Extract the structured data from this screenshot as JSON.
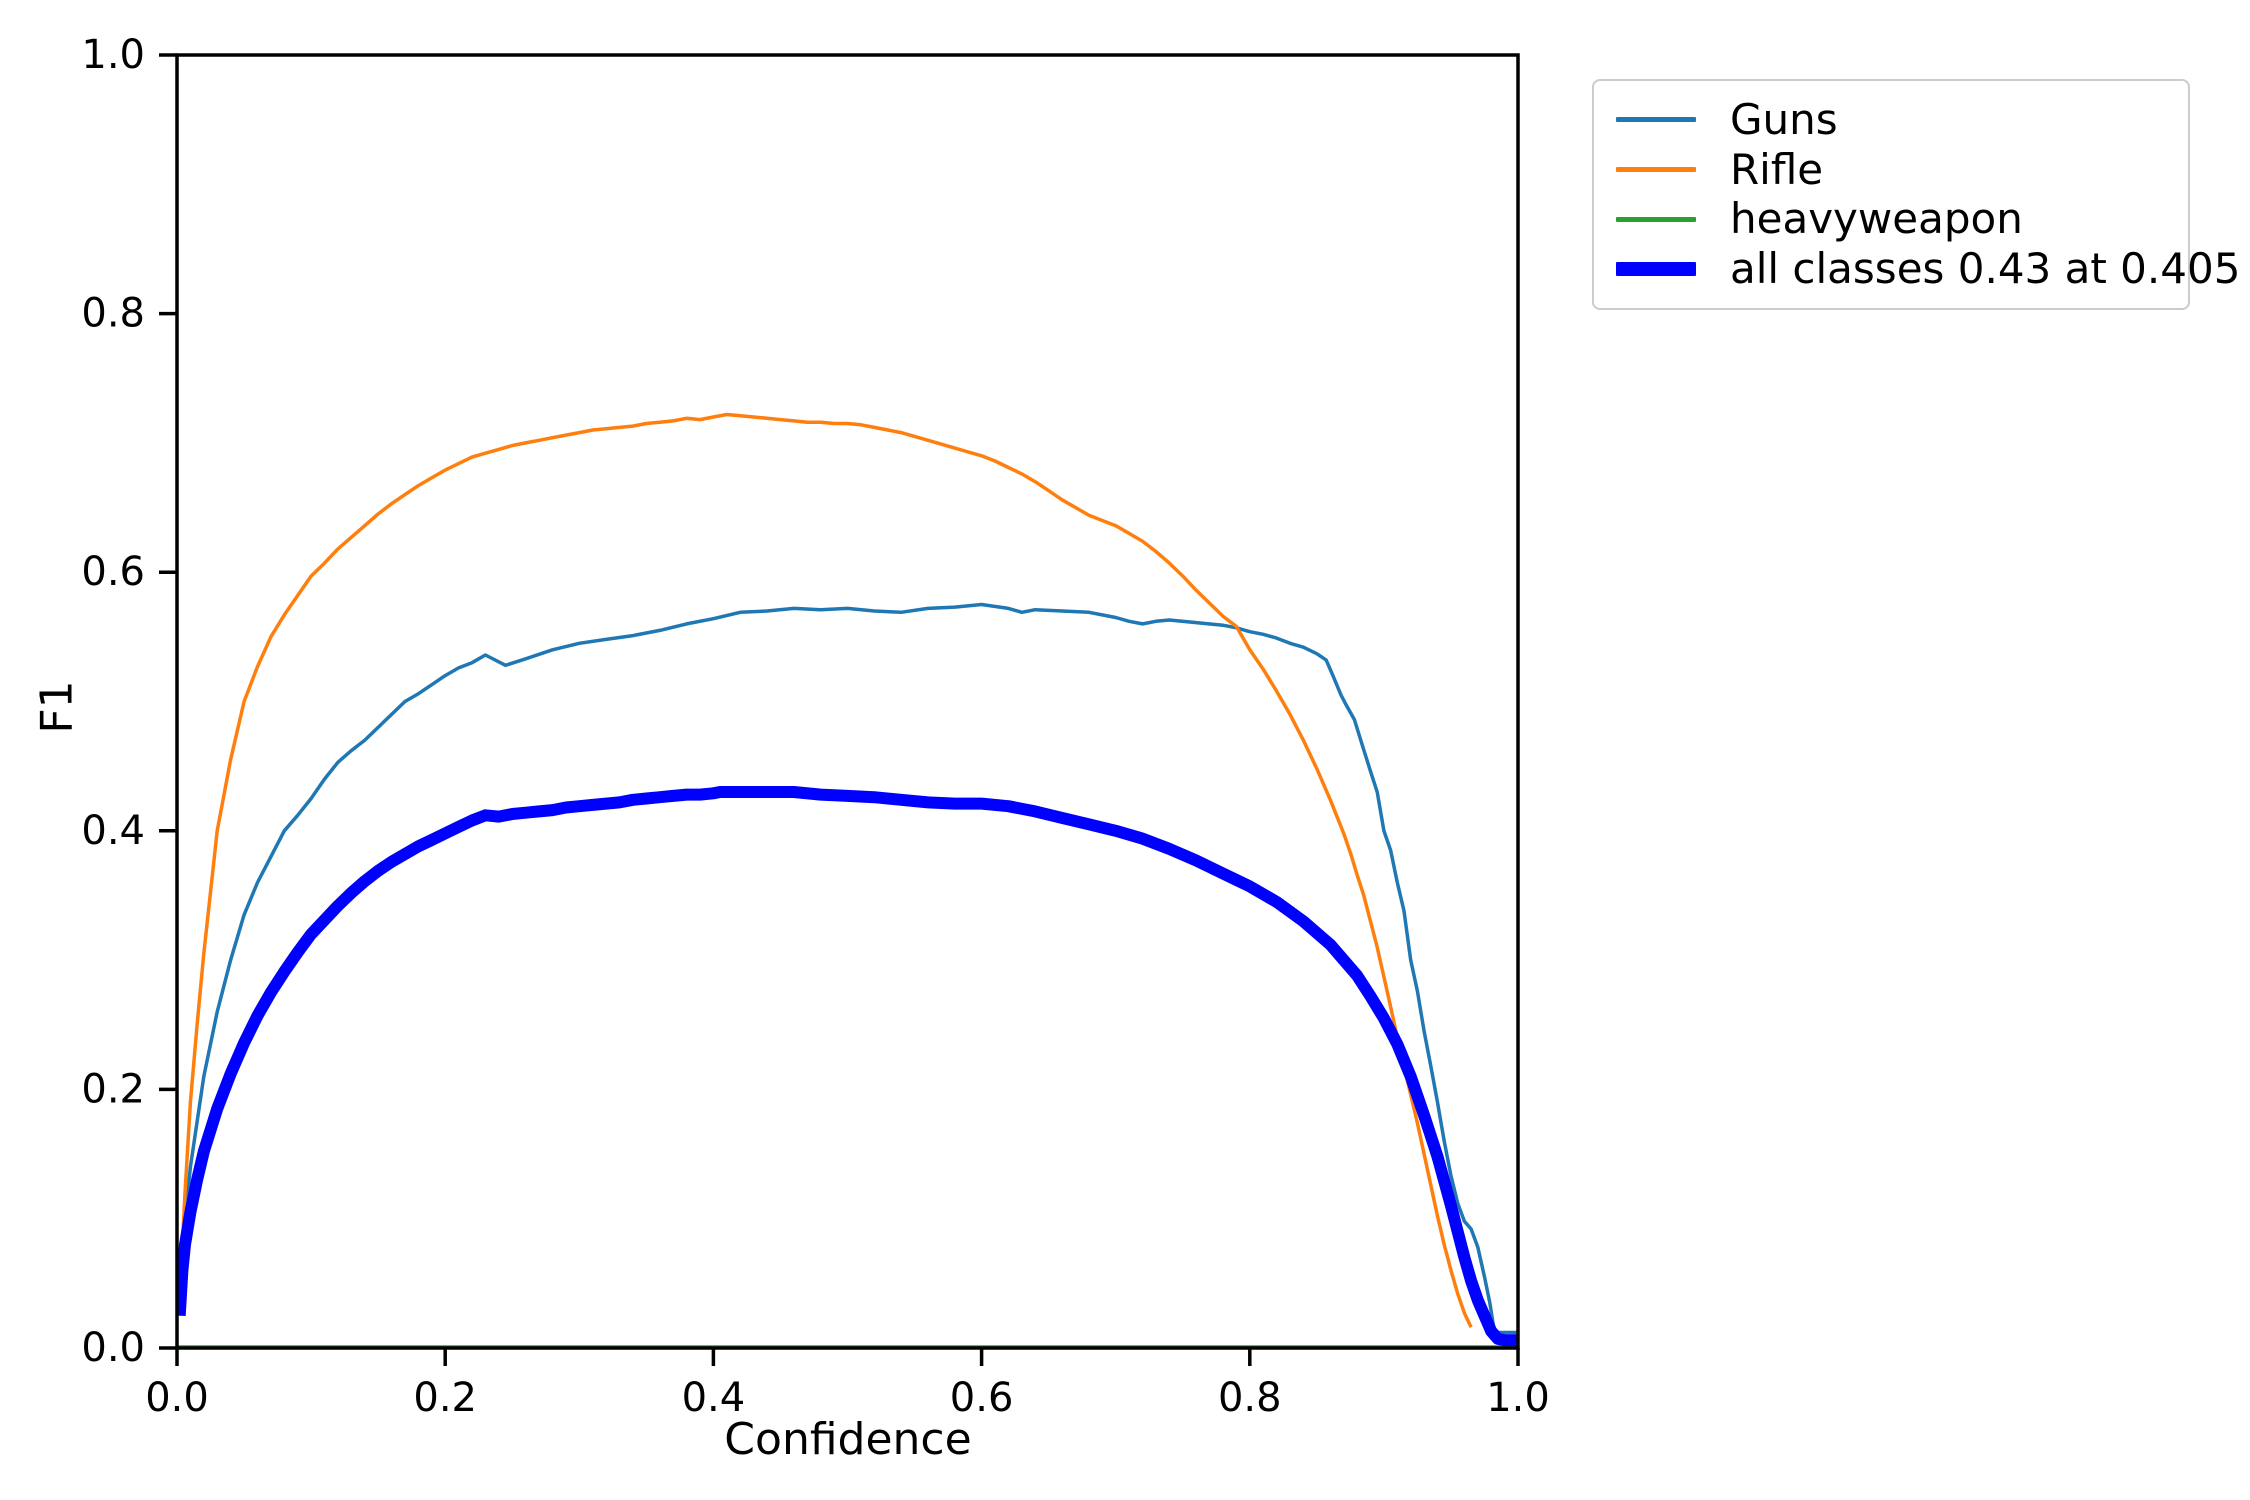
{
  "figure": {
    "xlabel": "Confidence",
    "ylabel": "F1",
    "background_color": "#ffffff",
    "axis_color": "#000000",
    "legend_border_color": "#cccccc"
  },
  "chart_data": {
    "type": "line",
    "title": "",
    "xlabel": "Confidence",
    "ylabel": "F1",
    "xlim": [
      0.0,
      1.0
    ],
    "ylim": [
      0.0,
      1.0
    ],
    "xticks": [
      "0.0",
      "0.2",
      "0.4",
      "0.6",
      "0.8",
      "1.0"
    ],
    "yticks": [
      "0.0",
      "0.2",
      "0.4",
      "0.6",
      "0.8",
      "1.0"
    ],
    "grid": false,
    "legend_position": "upper-right-outside",
    "series": [
      {
        "name": "Guns",
        "color": "#1f77b4",
        "width": 3.5,
        "points": [
          [
            0.002,
            0.025
          ],
          [
            0.005,
            0.09
          ],
          [
            0.01,
            0.14
          ],
          [
            0.02,
            0.21
          ],
          [
            0.03,
            0.26
          ],
          [
            0.04,
            0.3
          ],
          [
            0.05,
            0.335
          ],
          [
            0.06,
            0.36
          ],
          [
            0.07,
            0.38
          ],
          [
            0.08,
            0.4
          ],
          [
            0.09,
            0.412
          ],
          [
            0.1,
            0.425
          ],
          [
            0.11,
            0.44
          ],
          [
            0.12,
            0.453
          ],
          [
            0.13,
            0.462
          ],
          [
            0.14,
            0.47
          ],
          [
            0.15,
            0.48
          ],
          [
            0.16,
            0.49
          ],
          [
            0.17,
            0.5
          ],
          [
            0.18,
            0.506
          ],
          [
            0.19,
            0.513
          ],
          [
            0.2,
            0.52
          ],
          [
            0.21,
            0.526
          ],
          [
            0.22,
            0.53
          ],
          [
            0.23,
            0.536
          ],
          [
            0.245,
            0.528
          ],
          [
            0.26,
            0.533
          ],
          [
            0.28,
            0.54
          ],
          [
            0.3,
            0.545
          ],
          [
            0.32,
            0.548
          ],
          [
            0.34,
            0.551
          ],
          [
            0.36,
            0.555
          ],
          [
            0.38,
            0.56
          ],
          [
            0.4,
            0.564
          ],
          [
            0.42,
            0.569
          ],
          [
            0.44,
            0.57
          ],
          [
            0.46,
            0.572
          ],
          [
            0.48,
            0.571
          ],
          [
            0.5,
            0.572
          ],
          [
            0.52,
            0.57
          ],
          [
            0.54,
            0.569
          ],
          [
            0.56,
            0.572
          ],
          [
            0.58,
            0.573
          ],
          [
            0.6,
            0.575
          ],
          [
            0.62,
            0.572
          ],
          [
            0.63,
            0.569
          ],
          [
            0.64,
            0.571
          ],
          [
            0.66,
            0.57
          ],
          [
            0.68,
            0.569
          ],
          [
            0.7,
            0.565
          ],
          [
            0.71,
            0.562
          ],
          [
            0.72,
            0.56
          ],
          [
            0.73,
            0.562
          ],
          [
            0.74,
            0.563
          ],
          [
            0.76,
            0.561
          ],
          [
            0.78,
            0.559
          ],
          [
            0.79,
            0.557
          ],
          [
            0.8,
            0.554
          ],
          [
            0.81,
            0.552
          ],
          [
            0.82,
            0.549
          ],
          [
            0.83,
            0.545
          ],
          [
            0.84,
            0.542
          ],
          [
            0.85,
            0.537
          ],
          [
            0.857,
            0.532
          ],
          [
            0.862,
            0.52
          ],
          [
            0.868,
            0.505
          ],
          [
            0.872,
            0.497
          ],
          [
            0.878,
            0.486
          ],
          [
            0.884,
            0.466
          ],
          [
            0.89,
            0.446
          ],
          [
            0.895,
            0.43
          ],
          [
            0.9,
            0.4
          ],
          [
            0.905,
            0.385
          ],
          [
            0.91,
            0.36
          ],
          [
            0.915,
            0.338
          ],
          [
            0.92,
            0.3
          ],
          [
            0.925,
            0.276
          ],
          [
            0.93,
            0.245
          ],
          [
            0.935,
            0.218
          ],
          [
            0.94,
            0.19
          ],
          [
            0.945,
            0.16
          ],
          [
            0.95,
            0.133
          ],
          [
            0.955,
            0.112
          ],
          [
            0.96,
            0.098
          ],
          [
            0.965,
            0.092
          ],
          [
            0.97,
            0.078
          ],
          [
            0.975,
            0.055
          ],
          [
            0.979,
            0.035
          ],
          [
            0.982,
            0.015
          ],
          [
            0.985,
            0.012
          ],
          [
            1.0,
            0.012
          ]
        ]
      },
      {
        "name": "Rifle",
        "color": "#ff7f0e",
        "width": 3.5,
        "points": [
          [
            0.002,
            0.03
          ],
          [
            0.004,
            0.08
          ],
          [
            0.006,
            0.12
          ],
          [
            0.01,
            0.19
          ],
          [
            0.015,
            0.25
          ],
          [
            0.02,
            0.305
          ],
          [
            0.03,
            0.4
          ],
          [
            0.04,
            0.455
          ],
          [
            0.05,
            0.5
          ],
          [
            0.06,
            0.527
          ],
          [
            0.07,
            0.55
          ],
          [
            0.08,
            0.567
          ],
          [
            0.09,
            0.582
          ],
          [
            0.1,
            0.597
          ],
          [
            0.11,
            0.607
          ],
          [
            0.12,
            0.618
          ],
          [
            0.13,
            0.627
          ],
          [
            0.14,
            0.636
          ],
          [
            0.15,
            0.645
          ],
          [
            0.16,
            0.653
          ],
          [
            0.17,
            0.66
          ],
          [
            0.18,
            0.667
          ],
          [
            0.19,
            0.673
          ],
          [
            0.2,
            0.679
          ],
          [
            0.21,
            0.684
          ],
          [
            0.22,
            0.689
          ],
          [
            0.23,
            0.692
          ],
          [
            0.24,
            0.695
          ],
          [
            0.25,
            0.698
          ],
          [
            0.26,
            0.7
          ],
          [
            0.27,
            0.702
          ],
          [
            0.28,
            0.704
          ],
          [
            0.29,
            0.706
          ],
          [
            0.3,
            0.708
          ],
          [
            0.31,
            0.71
          ],
          [
            0.32,
            0.711
          ],
          [
            0.33,
            0.712
          ],
          [
            0.34,
            0.713
          ],
          [
            0.35,
            0.715
          ],
          [
            0.36,
            0.716
          ],
          [
            0.37,
            0.717
          ],
          [
            0.38,
            0.719
          ],
          [
            0.39,
            0.718
          ],
          [
            0.4,
            0.72
          ],
          [
            0.41,
            0.722
          ],
          [
            0.42,
            0.721
          ],
          [
            0.43,
            0.72
          ],
          [
            0.44,
            0.719
          ],
          [
            0.45,
            0.718
          ],
          [
            0.46,
            0.717
          ],
          [
            0.47,
            0.716
          ],
          [
            0.48,
            0.716
          ],
          [
            0.49,
            0.715
          ],
          [
            0.5,
            0.715
          ],
          [
            0.51,
            0.714
          ],
          [
            0.52,
            0.712
          ],
          [
            0.53,
            0.71
          ],
          [
            0.54,
            0.708
          ],
          [
            0.55,
            0.705
          ],
          [
            0.56,
            0.702
          ],
          [
            0.57,
            0.699
          ],
          [
            0.58,
            0.696
          ],
          [
            0.59,
            0.693
          ],
          [
            0.6,
            0.69
          ],
          [
            0.61,
            0.686
          ],
          [
            0.62,
            0.681
          ],
          [
            0.63,
            0.676
          ],
          [
            0.64,
            0.67
          ],
          [
            0.65,
            0.663
          ],
          [
            0.66,
            0.656
          ],
          [
            0.67,
            0.65
          ],
          [
            0.68,
            0.644
          ],
          [
            0.69,
            0.64
          ],
          [
            0.7,
            0.636
          ],
          [
            0.71,
            0.63
          ],
          [
            0.72,
            0.624
          ],
          [
            0.73,
            0.616
          ],
          [
            0.74,
            0.607
          ],
          [
            0.75,
            0.597
          ],
          [
            0.76,
            0.586
          ],
          [
            0.77,
            0.576
          ],
          [
            0.78,
            0.566
          ],
          [
            0.79,
            0.558
          ],
          [
            0.8,
            0.54
          ],
          [
            0.81,
            0.525
          ],
          [
            0.82,
            0.508
          ],
          [
            0.83,
            0.49
          ],
          [
            0.84,
            0.47
          ],
          [
            0.85,
            0.448
          ],
          [
            0.86,
            0.424
          ],
          [
            0.87,
            0.398
          ],
          [
            0.875,
            0.383
          ],
          [
            0.88,
            0.366
          ],
          [
            0.885,
            0.35
          ],
          [
            0.89,
            0.33
          ],
          [
            0.895,
            0.31
          ],
          [
            0.9,
            0.287
          ],
          [
            0.905,
            0.264
          ],
          [
            0.91,
            0.24
          ],
          [
            0.915,
            0.218
          ],
          [
            0.92,
            0.196
          ],
          [
            0.925,
            0.174
          ],
          [
            0.93,
            0.15
          ],
          [
            0.935,
            0.126
          ],
          [
            0.94,
            0.102
          ],
          [
            0.945,
            0.08
          ],
          [
            0.95,
            0.06
          ],
          [
            0.955,
            0.042
          ],
          [
            0.96,
            0.027
          ],
          [
            0.965,
            0.016
          ]
        ]
      },
      {
        "name": "heavyweapon",
        "color": "#2ca02c",
        "width": 3,
        "points": [
          [
            0.0,
            0.001
          ],
          [
            1.0,
            0.001
          ]
        ]
      },
      {
        "name": "all classes 0.43 at 0.405",
        "color": "#0000ff",
        "width": 12,
        "points": [
          [
            0.002,
            0.025
          ],
          [
            0.004,
            0.06
          ],
          [
            0.006,
            0.08
          ],
          [
            0.01,
            0.105
          ],
          [
            0.015,
            0.13
          ],
          [
            0.02,
            0.152
          ],
          [
            0.03,
            0.185
          ],
          [
            0.04,
            0.212
          ],
          [
            0.05,
            0.236
          ],
          [
            0.06,
            0.257
          ],
          [
            0.07,
            0.275
          ],
          [
            0.08,
            0.291
          ],
          [
            0.09,
            0.306
          ],
          [
            0.1,
            0.32
          ],
          [
            0.11,
            0.331
          ],
          [
            0.12,
            0.342
          ],
          [
            0.13,
            0.352
          ],
          [
            0.14,
            0.361
          ],
          [
            0.15,
            0.369
          ],
          [
            0.16,
            0.376
          ],
          [
            0.17,
            0.382
          ],
          [
            0.18,
            0.388
          ],
          [
            0.19,
            0.393
          ],
          [
            0.2,
            0.398
          ],
          [
            0.21,
            0.403
          ],
          [
            0.22,
            0.408
          ],
          [
            0.23,
            0.412
          ],
          [
            0.24,
            0.411
          ],
          [
            0.25,
            0.413
          ],
          [
            0.26,
            0.414
          ],
          [
            0.27,
            0.415
          ],
          [
            0.28,
            0.416
          ],
          [
            0.29,
            0.418
          ],
          [
            0.3,
            0.419
          ],
          [
            0.31,
            0.42
          ],
          [
            0.32,
            0.421
          ],
          [
            0.33,
            0.422
          ],
          [
            0.34,
            0.424
          ],
          [
            0.35,
            0.425
          ],
          [
            0.36,
            0.426
          ],
          [
            0.37,
            0.427
          ],
          [
            0.38,
            0.428
          ],
          [
            0.39,
            0.428
          ],
          [
            0.4,
            0.429
          ],
          [
            0.405,
            0.43
          ],
          [
            0.42,
            0.43
          ],
          [
            0.44,
            0.43
          ],
          [
            0.46,
            0.43
          ],
          [
            0.48,
            0.428
          ],
          [
            0.5,
            0.427
          ],
          [
            0.52,
            0.426
          ],
          [
            0.54,
            0.424
          ],
          [
            0.56,
            0.422
          ],
          [
            0.58,
            0.421
          ],
          [
            0.6,
            0.421
          ],
          [
            0.62,
            0.419
          ],
          [
            0.64,
            0.415
          ],
          [
            0.66,
            0.41
          ],
          [
            0.68,
            0.405
          ],
          [
            0.7,
            0.4
          ],
          [
            0.72,
            0.394
          ],
          [
            0.74,
            0.386
          ],
          [
            0.76,
            0.377
          ],
          [
            0.78,
            0.367
          ],
          [
            0.8,
            0.357
          ],
          [
            0.82,
            0.345
          ],
          [
            0.84,
            0.33
          ],
          [
            0.86,
            0.312
          ],
          [
            0.88,
            0.288
          ],
          [
            0.89,
            0.272
          ],
          [
            0.9,
            0.255
          ],
          [
            0.91,
            0.235
          ],
          [
            0.92,
            0.21
          ],
          [
            0.93,
            0.18
          ],
          [
            0.94,
            0.148
          ],
          [
            0.95,
            0.11
          ],
          [
            0.96,
            0.07
          ],
          [
            0.965,
            0.052
          ],
          [
            0.97,
            0.037
          ],
          [
            0.975,
            0.025
          ],
          [
            0.98,
            0.013
          ],
          [
            0.985,
            0.007
          ],
          [
            0.99,
            0.006
          ],
          [
            1.0,
            0.006
          ]
        ]
      }
    ]
  }
}
